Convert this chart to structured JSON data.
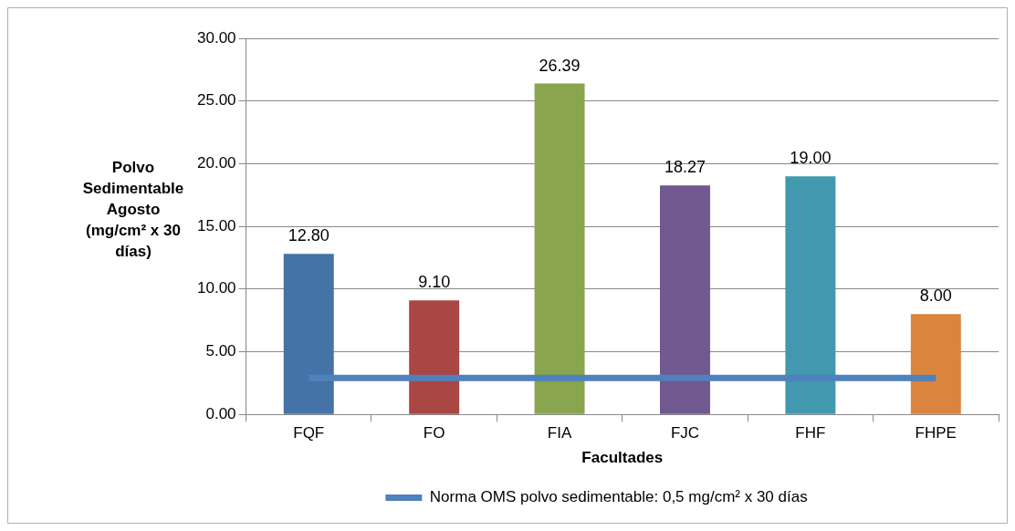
{
  "chart_data": {
    "type": "bar",
    "xlabel": "Facultades",
    "ylabel": "Polvo Sedimentable Agosto (mg/cm² x 30 días)",
    "categories": [
      "FQF",
      "FO",
      "FIA",
      "FJC",
      "FHF",
      "FHPE"
    ],
    "series": [
      {
        "colors": [
          "#4572a7",
          "#aa4643",
          "#89a54e",
          "#71588f",
          "#4198af",
          "#db843d"
        ],
        "values": [
          12.8,
          9.1,
          26.39,
          18.27,
          19.0,
          8.0
        ],
        "value_labels": [
          "12.80",
          "9.10",
          "26.39",
          "18.27",
          "19.00",
          "8.00"
        ]
      },
      {
        "type": "line",
        "name": "Norma OMS polvo sedimentable: 0,5 mg/cm² x 30 días",
        "color": "#4f81bd",
        "values": [
          2.9,
          2.9,
          2.9,
          2.9,
          2.9,
          2.9
        ]
      }
    ],
    "ylim": [
      0,
      30
    ],
    "yticks": [
      {
        "value": 0,
        "label": "0.00"
      },
      {
        "value": 5,
        "label": "5.00"
      },
      {
        "value": 10,
        "label": "10.00"
      },
      {
        "value": 15,
        "label": "15.00"
      },
      {
        "value": 20,
        "label": "20.00"
      },
      {
        "value": 25,
        "label": "25.00"
      },
      {
        "value": 30,
        "label": "30.00"
      }
    ],
    "grid": "y",
    "legend": "bottom",
    "marker": "none"
  }
}
